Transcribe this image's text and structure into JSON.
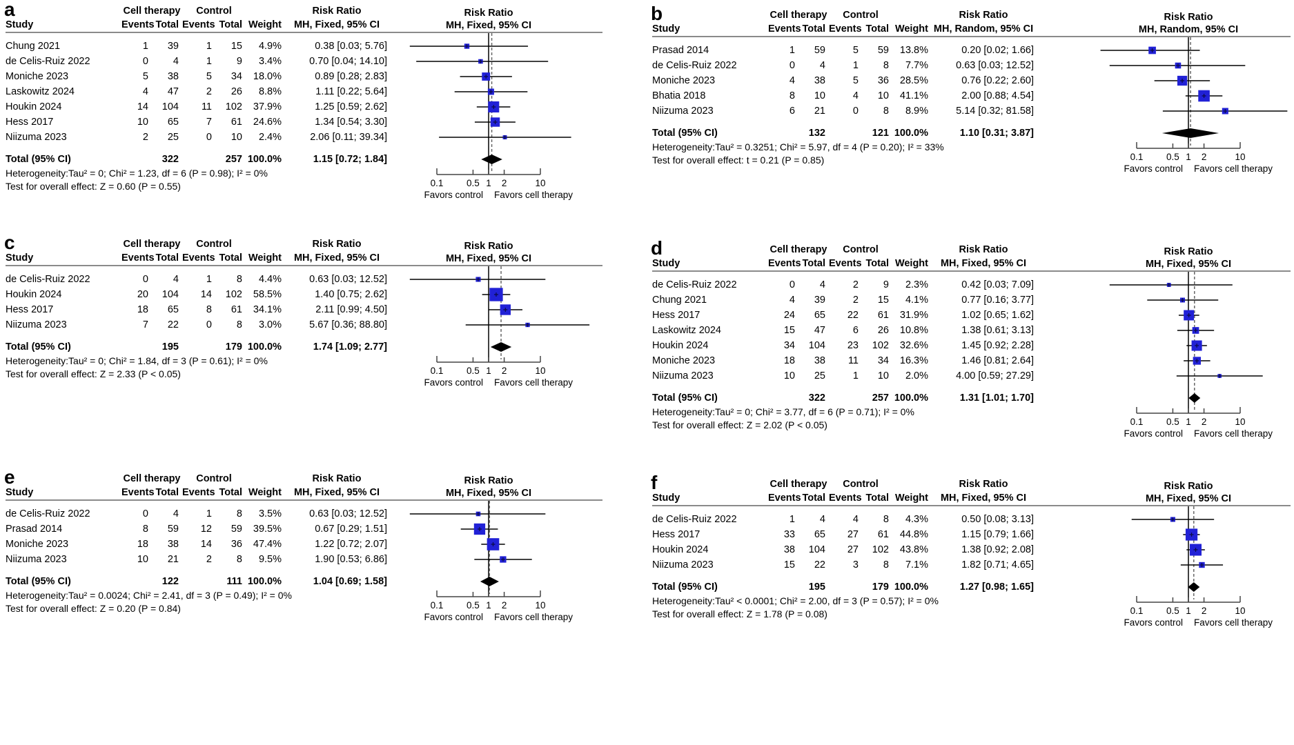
{
  "figure_title": "Forest plots of risk ratios, cell therapy vs control",
  "columns": {
    "study": "Study",
    "group1": "Cell therapy",
    "group2": "Control",
    "events": "Events",
    "total": "Total",
    "weight": "Weight",
    "rr_title": "Risk Ratio"
  },
  "axis": {
    "tick_values": [
      0.1,
      0.5,
      1,
      2,
      10
    ],
    "tick_labels": [
      "0.1",
      "0.5",
      "1",
      "2",
      "10"
    ],
    "left_label": "Favors control",
    "right_label": "Favors cell therapy",
    "scale": "log10"
  },
  "colors": {
    "marker": "#2121d6",
    "marker_cross": "#0b0b46",
    "ci_line": "#000000",
    "diamond": "#000000",
    "null_line": "#000000",
    "pooled_line": "#666666",
    "divider": "#8a8a8a"
  },
  "chart_data": [
    {
      "type": "forest",
      "panel": "a",
      "ci_label": "MH, Fixed, 95% CI",
      "studies": [
        {
          "name": "Chung 2021",
          "e1": 1,
          "n1": 39,
          "e2": 1,
          "n2": 15,
          "weight": "4.9%",
          "rr": 0.38,
          "lo": 0.03,
          "hi": 5.76,
          "ci_text": "0.38 [0.03; 5.76]"
        },
        {
          "name": "de Celis-Ruiz 2022",
          "e1": 0,
          "n1": 4,
          "e2": 1,
          "n2": 9,
          "weight": "3.4%",
          "rr": 0.7,
          "lo": 0.04,
          "hi": 14.1,
          "ci_text": "0.70 [0.04; 14.10]"
        },
        {
          "name": "Moniche 2023",
          "e1": 5,
          "n1": 38,
          "e2": 5,
          "n2": 34,
          "weight": "18.0%",
          "rr": 0.89,
          "lo": 0.28,
          "hi": 2.83,
          "ci_text": "0.89 [0.28; 2.83]"
        },
        {
          "name": "Laskowitz 2024",
          "e1": 4,
          "n1": 47,
          "e2": 2,
          "n2": 26,
          "weight": "8.8%",
          "rr": 1.11,
          "lo": 0.22,
          "hi": 5.64,
          "ci_text": "1.11 [0.22; 5.64]"
        },
        {
          "name": "Houkin 2024",
          "e1": 14,
          "n1": 104,
          "e2": 11,
          "n2": 102,
          "weight": "37.9%",
          "rr": 1.25,
          "lo": 0.59,
          "hi": 2.62,
          "ci_text": "1.25 [0.59; 2.62]"
        },
        {
          "name": "Hess 2017",
          "e1": 10,
          "n1": 65,
          "e2": 7,
          "n2": 61,
          "weight": "24.6%",
          "rr": 1.34,
          "lo": 0.54,
          "hi": 3.3,
          "ci_text": "1.34 [0.54; 3.30]"
        },
        {
          "name": "Niizuma 2023",
          "e1": 2,
          "n1": 25,
          "e2": 0,
          "n2": 10,
          "weight": "2.4%",
          "rr": 2.06,
          "lo": 0.11,
          "hi": 39.34,
          "ci_text": "2.06 [0.11; 39.34]"
        }
      ],
      "total": {
        "label": "Total (95% CI)",
        "n1": 322,
        "n2": 257,
        "weight": "100.0%",
        "rr": 1.15,
        "lo": 0.72,
        "hi": 1.84,
        "ci_text": "1.15 [0.72; 1.84]"
      },
      "heterogeneity": "Heterogeneity:Tau² = 0; Chi² = 1.23, df = 6 (P = 0.98); I² = 0%",
      "overall_test": "Test for overall effect: Z = 0.60 (P = 0.55)"
    },
    {
      "type": "forest",
      "panel": "b",
      "ci_label": "MH, Random, 95% CI",
      "studies": [
        {
          "name": "Prasad 2014",
          "e1": 1,
          "n1": 59,
          "e2": 5,
          "n2": 59,
          "weight": "13.8%",
          "rr": 0.2,
          "lo": 0.02,
          "hi": 1.66,
          "ci_text": "0.20 [0.02; 1.66]"
        },
        {
          "name": "de Celis-Ruiz 2022",
          "e1": 0,
          "n1": 4,
          "e2": 1,
          "n2": 8,
          "weight": "7.7%",
          "rr": 0.63,
          "lo": 0.03,
          "hi": 12.52,
          "ci_text": "0.63 [0.03; 12.52]"
        },
        {
          "name": "Moniche 2023",
          "e1": 4,
          "n1": 38,
          "e2": 5,
          "n2": 36,
          "weight": "28.5%",
          "rr": 0.76,
          "lo": 0.22,
          "hi": 2.6,
          "ci_text": "0.76 [0.22; 2.60]"
        },
        {
          "name": "Bhatia 2018",
          "e1": 8,
          "n1": 10,
          "e2": 4,
          "n2": 10,
          "weight": "41.1%",
          "rr": 2.0,
          "lo": 0.88,
          "hi": 4.54,
          "ci_text": "2.00 [0.88; 4.54]"
        },
        {
          "name": "Niizuma 2023",
          "e1": 6,
          "n1": 21,
          "e2": 0,
          "n2": 8,
          "weight": "8.9%",
          "rr": 5.14,
          "lo": 0.32,
          "hi": 81.58,
          "ci_text": "5.14 [0.32; 81.58]"
        }
      ],
      "total": {
        "label": "Total (95% CI)",
        "n1": 132,
        "n2": 121,
        "weight": "100.0%",
        "rr": 1.1,
        "lo": 0.31,
        "hi": 3.87,
        "ci_text": "1.10 [0.31; 3.87]"
      },
      "heterogeneity": "Heterogeneity:Tau² = 0.3251; Chi² = 5.97, df = 4 (P = 0.20); I² = 33%",
      "overall_test": "Test for overall effect: t = 0.21 (P = 0.85)"
    },
    {
      "type": "forest",
      "panel": "c",
      "ci_label": "MH, Fixed, 95% CI",
      "studies": [
        {
          "name": "de Celis-Ruiz 2022",
          "e1": 0,
          "n1": 4,
          "e2": 1,
          "n2": 8,
          "weight": "4.4%",
          "rr": 0.63,
          "lo": 0.03,
          "hi": 12.52,
          "ci_text": "0.63 [0.03; 12.52]"
        },
        {
          "name": "Houkin 2024",
          "e1": 20,
          "n1": 104,
          "e2": 14,
          "n2": 102,
          "weight": "58.5%",
          "rr": 1.4,
          "lo": 0.75,
          "hi": 2.62,
          "ci_text": "1.40 [0.75; 2.62]"
        },
        {
          "name": "Hess 2017",
          "e1": 18,
          "n1": 65,
          "e2": 8,
          "n2": 61,
          "weight": "34.1%",
          "rr": 2.11,
          "lo": 0.99,
          "hi": 4.5,
          "ci_text": "2.11 [0.99; 4.50]"
        },
        {
          "name": "Niizuma 2023",
          "e1": 7,
          "n1": 22,
          "e2": 0,
          "n2": 8,
          "weight": "3.0%",
          "rr": 5.67,
          "lo": 0.36,
          "hi": 88.8,
          "ci_text": "5.67 [0.36; 88.80]"
        }
      ],
      "total": {
        "label": "Total (95% CI)",
        "n1": 195,
        "n2": 179,
        "weight": "100.0%",
        "rr": 1.74,
        "lo": 1.09,
        "hi": 2.77,
        "ci_text": "1.74 [1.09; 2.77]"
      },
      "heterogeneity": "Heterogeneity:Tau² = 0; Chi² = 1.84, df = 3 (P = 0.61); I² = 0%",
      "overall_test": "Test for overall effect: Z = 2.33 (P < 0.05)"
    },
    {
      "type": "forest",
      "panel": "d",
      "ci_label": "MH, Fixed, 95% CI",
      "studies": [
        {
          "name": "de Celis-Ruiz 2022",
          "e1": 0,
          "n1": 4,
          "e2": 2,
          "n2": 9,
          "weight": "2.3%",
          "rr": 0.42,
          "lo": 0.03,
          "hi": 7.09,
          "ci_text": "0.42 [0.03; 7.09]"
        },
        {
          "name": "Chung 2021",
          "e1": 4,
          "n1": 39,
          "e2": 2,
          "n2": 15,
          "weight": "4.1%",
          "rr": 0.77,
          "lo": 0.16,
          "hi": 3.77,
          "ci_text": "0.77 [0.16; 3.77]"
        },
        {
          "name": "Hess 2017",
          "e1": 24,
          "n1": 65,
          "e2": 22,
          "n2": 61,
          "weight": "31.9%",
          "rr": 1.02,
          "lo": 0.65,
          "hi": 1.62,
          "ci_text": "1.02 [0.65; 1.62]"
        },
        {
          "name": "Laskowitz 2024",
          "e1": 15,
          "n1": 47,
          "e2": 6,
          "n2": 26,
          "weight": "10.8%",
          "rr": 1.38,
          "lo": 0.61,
          "hi": 3.13,
          "ci_text": "1.38 [0.61; 3.13]"
        },
        {
          "name": "Houkin 2024",
          "e1": 34,
          "n1": 104,
          "e2": 23,
          "n2": 102,
          "weight": "32.6%",
          "rr": 1.45,
          "lo": 0.92,
          "hi": 2.28,
          "ci_text": "1.45 [0.92; 2.28]"
        },
        {
          "name": "Moniche 2023",
          "e1": 18,
          "n1": 38,
          "e2": 11,
          "n2": 34,
          "weight": "16.3%",
          "rr": 1.46,
          "lo": 0.81,
          "hi": 2.64,
          "ci_text": "1.46 [0.81; 2.64]"
        },
        {
          "name": "Niizuma 2023",
          "e1": 10,
          "n1": 25,
          "e2": 1,
          "n2": 10,
          "weight": "2.0%",
          "rr": 4.0,
          "lo": 0.59,
          "hi": 27.29,
          "ci_text": "4.00 [0.59; 27.29]"
        }
      ],
      "total": {
        "label": "Total (95% CI)",
        "n1": 322,
        "n2": 257,
        "weight": "100.0%",
        "rr": 1.31,
        "lo": 1.01,
        "hi": 1.7,
        "ci_text": "1.31 [1.01; 1.70]"
      },
      "heterogeneity": "Heterogeneity:Tau² = 0; Chi² = 3.77, df = 6 (P = 0.71); I² = 0%",
      "overall_test": "Test for overall effect: Z = 2.02 (P < 0.05)"
    },
    {
      "type": "forest",
      "panel": "e",
      "ci_label": "MH, Fixed, 95% CI",
      "studies": [
        {
          "name": "de Celis-Ruiz 2022",
          "e1": 0,
          "n1": 4,
          "e2": 1,
          "n2": 8,
          "weight": "3.5%",
          "rr": 0.63,
          "lo": 0.03,
          "hi": 12.52,
          "ci_text": "0.63 [0.03; 12.52]"
        },
        {
          "name": "Prasad 2014",
          "e1": 8,
          "n1": 59,
          "e2": 12,
          "n2": 59,
          "weight": "39.5%",
          "rr": 0.67,
          "lo": 0.29,
          "hi": 1.51,
          "ci_text": "0.67 [0.29; 1.51]"
        },
        {
          "name": "Moniche 2023",
          "e1": 18,
          "n1": 38,
          "e2": 14,
          "n2": 36,
          "weight": "47.4%",
          "rr": 1.22,
          "lo": 0.72,
          "hi": 2.07,
          "ci_text": "1.22 [0.72; 2.07]"
        },
        {
          "name": "Niizuma 2023",
          "e1": 10,
          "n1": 21,
          "e2": 2,
          "n2": 8,
          "weight": "9.5%",
          "rr": 1.9,
          "lo": 0.53,
          "hi": 6.86,
          "ci_text": "1.90 [0.53; 6.86]"
        }
      ],
      "total": {
        "label": "Total (95% CI)",
        "n1": 122,
        "n2": 111,
        "weight": "100.0%",
        "rr": 1.04,
        "lo": 0.69,
        "hi": 1.58,
        "ci_text": "1.04 [0.69; 1.58]"
      },
      "heterogeneity": "Heterogeneity:Tau² = 0.0024; Chi² = 2.41, df = 3 (P = 0.49); I² = 0%",
      "overall_test": "Test for overall effect: Z = 0.20 (P = 0.84)"
    },
    {
      "type": "forest",
      "panel": "f",
      "ci_label": "MH, Fixed, 95% CI",
      "studies": [
        {
          "name": "de Celis-Ruiz 2022",
          "e1": 1,
          "n1": 4,
          "e2": 4,
          "n2": 8,
          "weight": "4.3%",
          "rr": 0.5,
          "lo": 0.08,
          "hi": 3.13,
          "ci_text": "0.50 [0.08; 3.13]"
        },
        {
          "name": "Hess 2017",
          "e1": 33,
          "n1": 65,
          "e2": 27,
          "n2": 61,
          "weight": "44.8%",
          "rr": 1.15,
          "lo": 0.79,
          "hi": 1.66,
          "ci_text": "1.15 [0.79; 1.66]"
        },
        {
          "name": "Houkin 2024",
          "e1": 38,
          "n1": 104,
          "e2": 27,
          "n2": 102,
          "weight": "43.8%",
          "rr": 1.38,
          "lo": 0.92,
          "hi": 2.08,
          "ci_text": "1.38 [0.92; 2.08]"
        },
        {
          "name": "Niizuma 2023",
          "e1": 15,
          "n1": 22,
          "e2": 3,
          "n2": 8,
          "weight": "7.1%",
          "rr": 1.82,
          "lo": 0.71,
          "hi": 4.65,
          "ci_text": "1.82 [0.71; 4.65]"
        }
      ],
      "total": {
        "label": "Total (95% CI)",
        "n1": 195,
        "n2": 179,
        "weight": "100.0%",
        "rr": 1.27,
        "lo": 0.98,
        "hi": 1.65,
        "ci_text": "1.27 [0.98; 1.65]"
      },
      "heterogeneity": "Heterogeneity:Tau² < 0.0001; Chi² = 2.00, df = 3 (P = 0.57); I² = 0%",
      "overall_test": "Test for overall effect: Z = 1.78 (P = 0.08)"
    }
  ]
}
